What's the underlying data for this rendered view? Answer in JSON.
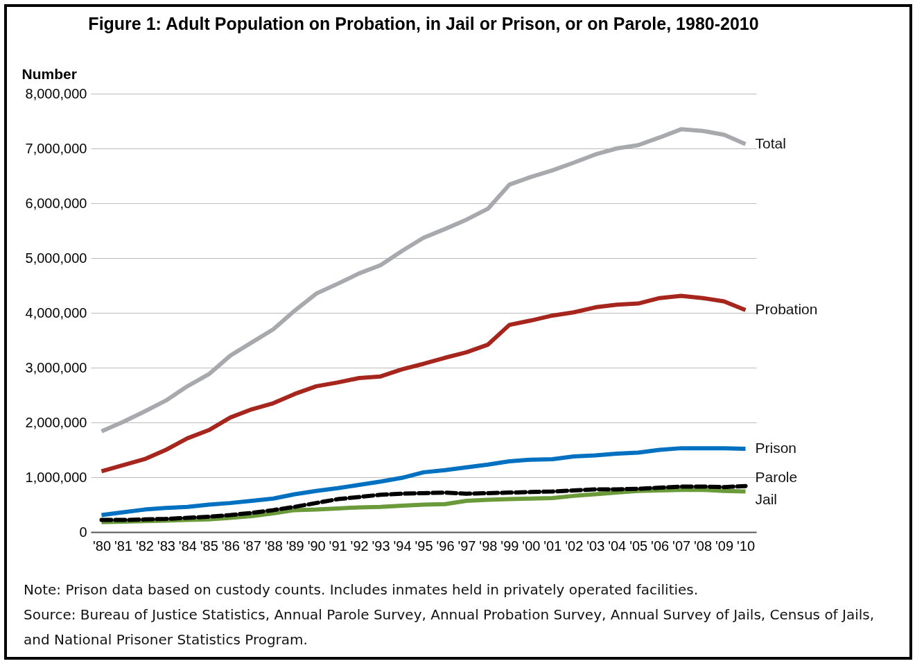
{
  "chart_data": {
    "type": "line",
    "title": "Figure 1: Adult Population on Probation, in Jail or Prison, or on Parole, 1980-2010",
    "ylabel": "Number",
    "categories": [
      "'80",
      "'81",
      "'82",
      "'83",
      "'84",
      "'85",
      "'86",
      "'87",
      "'88",
      "'89",
      "'90",
      "'91",
      "'92",
      "'93",
      "'94",
      "'95",
      "'96",
      "'97",
      "'98",
      "'99",
      "'00",
      "'01",
      "'02",
      "'03",
      "'04",
      "'05",
      "'06",
      "'07",
      "'08",
      "'09",
      "'10"
    ],
    "series": [
      {
        "name": "Total",
        "color": "#a7a9ac",
        "line_style": "solid",
        "values": [
          1840000,
          2010000,
          2200000,
          2400000,
          2660000,
          2880000,
          3220000,
          3460000,
          3700000,
          4040000,
          4350000,
          4530000,
          4720000,
          4870000,
          5130000,
          5370000,
          5530000,
          5700000,
          5900000,
          6340000,
          6480000,
          6600000,
          6740000,
          6890000,
          7000000,
          7060000,
          7200000,
          7350000,
          7320000,
          7250000,
          7080000
        ]
      },
      {
        "name": "Probation",
        "color": "#a6261e",
        "line_style": "solid",
        "values": [
          1110000,
          1220000,
          1330000,
          1500000,
          1710000,
          1860000,
          2090000,
          2240000,
          2350000,
          2520000,
          2660000,
          2730000,
          2810000,
          2840000,
          2970000,
          3070000,
          3180000,
          3280000,
          3420000,
          3780000,
          3860000,
          3950000,
          4010000,
          4100000,
          4150000,
          4170000,
          4270000,
          4310000,
          4270000,
          4210000,
          4050000
        ]
      },
      {
        "name": "Prison",
        "color": "#0070c0",
        "line_style": "solid",
        "values": [
          310000,
          360000,
          410000,
          440000,
          460000,
          500000,
          530000,
          570000,
          610000,
          690000,
          750000,
          800000,
          860000,
          920000,
          990000,
          1090000,
          1130000,
          1180000,
          1230000,
          1290000,
          1320000,
          1330000,
          1380000,
          1400000,
          1430000,
          1450000,
          1500000,
          1530000,
          1530000,
          1530000,
          1520000
        ]
      },
      {
        "name": "Parole",
        "color": "#000000",
        "line_style": "dashed",
        "values": [
          220000,
          220000,
          230000,
          240000,
          260000,
          280000,
          310000,
          350000,
          400000,
          460000,
          530000,
          600000,
          640000,
          680000,
          700000,
          710000,
          720000,
          700000,
          710000,
          720000,
          730000,
          740000,
          760000,
          780000,
          780000,
          790000,
          810000,
          830000,
          830000,
          820000,
          840000
        ]
      },
      {
        "name": "Jail",
        "color": "#6a9a3a",
        "line_style": "solid",
        "values": [
          180000,
          190000,
          200000,
          210000,
          220000,
          230000,
          260000,
          290000,
          340000,
          400000,
          410000,
          430000,
          450000,
          460000,
          480000,
          500000,
          510000,
          570000,
          590000,
          600000,
          610000,
          620000,
          660000,
          690000,
          720000,
          750000,
          760000,
          770000,
          770000,
          750000,
          740000
        ]
      }
    ],
    "ylim": [
      0,
      8000000
    ],
    "yticks": [
      0,
      {
        "value": 1000000,
        "label": "1,000,000"
      },
      {
        "value": 2000000,
        "label": "2,000,000"
      },
      {
        "value": 3000000,
        "label": "3,000,000"
      },
      {
        "value": 4000000,
        "label": "4,000,000"
      },
      {
        "value": 5000000,
        "label": "5,000,000"
      },
      {
        "value": 6000000,
        "label": "6,000,000"
      },
      {
        "value": 7000000,
        "label": "7,000,000"
      },
      {
        "value": 8000000,
        "label": "8,000,000"
      }
    ],
    "grid": "y",
    "annotations": [
      "Note: Prison data based on custody counts. Includes inmates held in privately operated facilities.",
      "Source: Bureau of Justice Statistics, Annual Parole Survey, Annual Probation Survey, Annual Survey of Jails, Census of Jails, and National Prisoner Statistics Program."
    ]
  }
}
